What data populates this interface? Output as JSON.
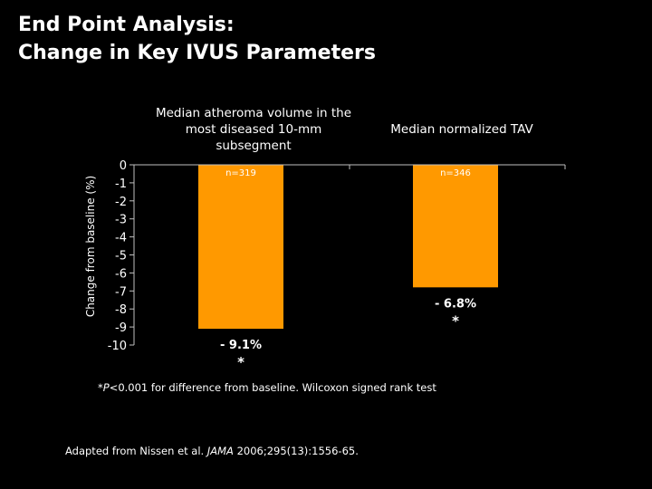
{
  "title": {
    "line1": "End Point Analysis:",
    "line2": "Change in Key IVUS Parameters"
  },
  "footnote": {
    "asterisk": "*",
    "p": "P",
    "text": "<0.001 for difference from baseline. Wilcoxon signed rank test"
  },
  "source": {
    "prefix": "Adapted from Nissen et al. ",
    "journal": "JAMA",
    "suffix": " 2006;295(13):1556-65."
  },
  "colors": {
    "bar": "#FF9900",
    "axis": "#BFBFBF",
    "background": "#000000",
    "text": "#FFFFFF"
  },
  "chart_data": {
    "type": "bar",
    "title": "",
    "ylabel": "Change from baseline (%)",
    "xlabel": "",
    "ylim": [
      -10,
      0
    ],
    "yticks": [
      0,
      -1,
      -2,
      -3,
      -4,
      -5,
      -6,
      -7,
      -8,
      -9,
      -10
    ],
    "grid": false,
    "legend": "none",
    "categories": [
      "Median atheroma volume in the most diseased 10-mm subsegment",
      "Median normalized TAV"
    ],
    "category_lines": [
      [
        "Median atheroma volume in the",
        "most diseased 10-mm",
        "subsegment"
      ],
      [
        "Median normalized TAV"
      ]
    ],
    "values": [
      -9.1,
      -6.8
    ],
    "n_labels": [
      "n=319",
      "n=346"
    ],
    "value_labels": [
      "- 9.1%",
      "- 6.8%"
    ],
    "significance": [
      "*",
      "*"
    ]
  }
}
